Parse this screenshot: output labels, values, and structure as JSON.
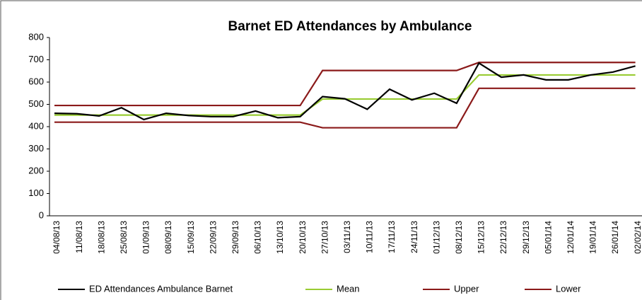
{
  "chart_data": {
    "type": "line",
    "title": "Barnet ED Attendances by Ambulance",
    "categories": [
      "04/08/13",
      "11/08/13",
      "18/08/13",
      "25/08/13",
      "01/09/13",
      "08/09/13",
      "15/09/13",
      "22/09/13",
      "29/09/13",
      "06/10/13",
      "13/10/13",
      "20/10/13",
      "27/10/13",
      "03/11/13",
      "10/11/13",
      "17/11/13",
      "24/11/13",
      "01/12/13",
      "08/12/13",
      "15/12/13",
      "22/12/13",
      "29/12/13",
      "05/01/14",
      "12/01/14",
      "19/01/14",
      "26/01/14",
      "02/02/14"
    ],
    "series": [
      {
        "name": "ED Attendances Ambulance Barnet",
        "color": "#000000",
        "values": [
          460,
          458,
          448,
          485,
          432,
          460,
          450,
          445,
          445,
          470,
          440,
          445,
          535,
          525,
          478,
          568,
          520,
          550,
          505,
          685,
          622,
          632,
          610,
          610,
          632,
          645,
          672
        ]
      },
      {
        "name": "Mean",
        "color": "#99cc33",
        "values": [
          452,
          452,
          452,
          452,
          452,
          452,
          452,
          452,
          452,
          452,
          452,
          452,
          524,
          524,
          524,
          524,
          524,
          524,
          524,
          632,
          632,
          632,
          632,
          632,
          632,
          632,
          632
        ]
      },
      {
        "name": "Upper",
        "color": "#8b1a1a",
        "values": [
          495,
          495,
          495,
          495,
          495,
          495,
          495,
          495,
          495,
          495,
          495,
          495,
          652,
          652,
          652,
          652,
          652,
          652,
          652,
          688,
          688,
          688,
          688,
          688,
          688,
          688,
          688
        ]
      },
      {
        "name": "Lower",
        "color": "#8b1a1a",
        "values": [
          420,
          420,
          420,
          420,
          420,
          420,
          420,
          420,
          420,
          420,
          420,
          420,
          395,
          395,
          395,
          395,
          395,
          395,
          395,
          572,
          572,
          572,
          572,
          572,
          572,
          572,
          572
        ]
      }
    ],
    "ylim": [
      0,
      800
    ],
    "yticks": [
      0,
      100,
      200,
      300,
      400,
      500,
      600,
      700,
      800
    ],
    "grid": false,
    "legend": "bottom"
  }
}
